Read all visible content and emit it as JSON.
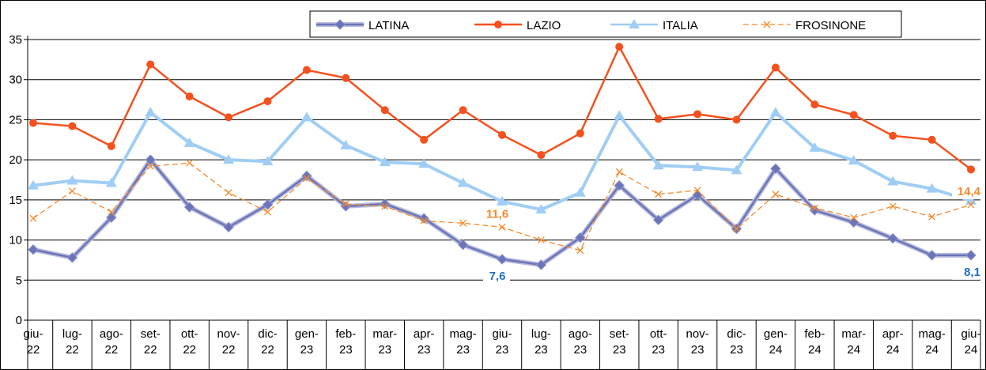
{
  "chart_data": {
    "type": "line",
    "categories": [
      "giu-22",
      "lug-22",
      "ago-22",
      "set-22",
      "ott-22",
      "nov-22",
      "dic-22",
      "gen-23",
      "feb-23",
      "mar-23",
      "apr-23",
      "mag-23",
      "giu-23",
      "lug-23",
      "ago-23",
      "set-23",
      "ott-23",
      "nov-23",
      "dic-23",
      "gen-24",
      "feb-24",
      "mar-24",
      "apr-24",
      "mag-24",
      "giu-24"
    ],
    "series": [
      {
        "name": "LATINA",
        "color": "#6b74b8",
        "marker": "diamond",
        "dash": false,
        "values": [
          8.8,
          7.8,
          12.8,
          20,
          14.1,
          11.6,
          14.4,
          18,
          14.2,
          14.5,
          12.7,
          9.4,
          7.6,
          6.9,
          10.3,
          16.8,
          12.5,
          15.6,
          11.4,
          18.9,
          13.7,
          12.2,
          10.2,
          8.1,
          8.1
        ],
        "value_labels": [
          null,
          null,
          null,
          null,
          null,
          null,
          null,
          null,
          null,
          null,
          null,
          null,
          "7,6",
          null,
          null,
          null,
          null,
          null,
          null,
          null,
          null,
          null,
          null,
          null,
          "8,1"
        ],
        "label_color": "#1f6fc6"
      },
      {
        "name": "LAZIO",
        "color": "#f4511e",
        "marker": "circle",
        "dash": false,
        "values": [
          24.6,
          24.2,
          21.7,
          31.9,
          27.9,
          25.3,
          27.3,
          31.2,
          30.2,
          26.2,
          22.5,
          26.2,
          23.1,
          20.6,
          23.3,
          34.1,
          25.1,
          25.7,
          25,
          31.5,
          26.9,
          25.6,
          23,
          22.5,
          18.8
        ]
      },
      {
        "name": "ITALIA",
        "color": "#9fcdf5",
        "marker": "triangle",
        "dash": false,
        "values": [
          16.8,
          17.4,
          17.1,
          25.9,
          22.1,
          20,
          19.8,
          25.3,
          21.8,
          19.7,
          19.5,
          17.1,
          14.8,
          13.8,
          15.9,
          25.5,
          19.3,
          19.1,
          18.7,
          25.9,
          21.5,
          19.9,
          17.3,
          16.4,
          14.9
        ]
      },
      {
        "name": "FROSINONE",
        "color": "#f58a2a",
        "marker": "x",
        "dash": true,
        "values": [
          12.7,
          16.1,
          13.5,
          19.2,
          19.6,
          15.9,
          13.5,
          17.7,
          14.5,
          14.2,
          12.4,
          12.1,
          11.6,
          10,
          8.7,
          18.5,
          15.7,
          16.2,
          11.4,
          15.7,
          14,
          12.8,
          14.2,
          12.9,
          14.4
        ],
        "value_labels": [
          null,
          null,
          null,
          null,
          null,
          null,
          null,
          null,
          null,
          null,
          null,
          null,
          "11,6",
          null,
          null,
          null,
          null,
          null,
          null,
          null,
          null,
          null,
          null,
          null,
          "14,4"
        ],
        "label_color": "#f58a2a"
      }
    ],
    "ylim": [
      0,
      35
    ],
    "yticks": [
      0,
      5,
      10,
      15,
      20,
      25,
      30,
      35
    ],
    "grid": true,
    "legend": "top"
  }
}
